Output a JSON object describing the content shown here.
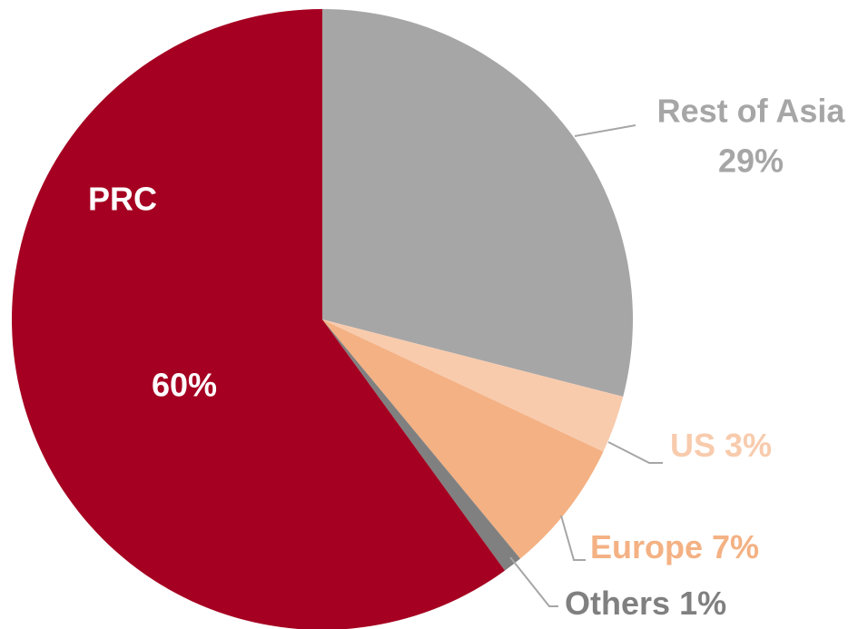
{
  "chart_data": {
    "type": "pie",
    "categories": [
      "Rest of Asia",
      "US",
      "Europe",
      "Others",
      "PRC"
    ],
    "values": [
      29,
      3,
      7,
      1,
      60
    ],
    "value_labels": [
      "29%",
      "3%",
      "7%",
      "1%",
      "60%"
    ],
    "colors": [
      "#a6a6a6",
      "#f8cbad",
      "#f4b183",
      "#808080",
      "#a50021"
    ]
  }
}
